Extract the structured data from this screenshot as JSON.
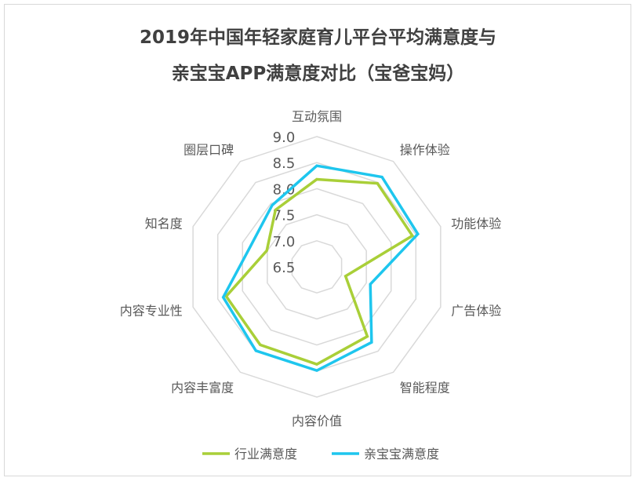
{
  "chart_data": {
    "type": "radar",
    "title_lines": [
      "2019年中国年轻家庭育儿平台平均满意度与",
      "亲宝宝APP满意度对比（宝爸宝妈）"
    ],
    "categories": [
      "互动氛围",
      "操作体验",
      "功能体验",
      "广告体验",
      "智能程度",
      "内容价值",
      "内容丰富度",
      "内容专业性",
      "知名度",
      "圈层口碑"
    ],
    "rlim": [
      6.5,
      9.0
    ],
    "ticks": [
      "6.5",
      "7.0",
      "7.5",
      "8.0",
      "8.5",
      "9.0"
    ],
    "grid": true,
    "legend_position": "bottom",
    "series": [
      {
        "name": "行业满意度",
        "color": "#A9CF38",
        "values": [
          8.18,
          8.48,
          8.43,
          7.08,
          8.15,
          8.37,
          8.35,
          8.33,
          7.51,
          7.85
        ]
      },
      {
        "name": "亲宝宝满意度",
        "color": "#1EC6EE",
        "values": [
          8.44,
          8.63,
          8.54,
          7.58,
          8.29,
          8.49,
          8.49,
          8.39,
          7.83,
          7.96
        ]
      }
    ]
  }
}
